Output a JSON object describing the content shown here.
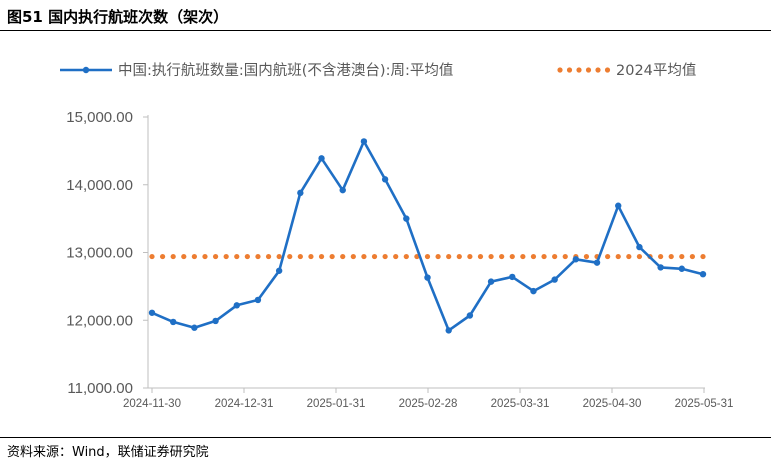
{
  "figure": {
    "title": "图51 国内执行航班次数（架次）",
    "source": "资料来源：Wind，联储证券研究院"
  },
  "colors": {
    "series": "#1f6fc5",
    "avg": "#ed7d31",
    "axis": "#bfbfbf",
    "text": "#595959"
  },
  "chart_data": {
    "type": "line",
    "title": "",
    "xlabel": "",
    "ylabel": "",
    "ylim": [
      11000,
      15000
    ],
    "yticks": [
      11000,
      12000,
      13000,
      14000,
      15000
    ],
    "ytick_labels": [
      "11,000.00",
      "12,000.00",
      "13,000.00",
      "14,000.00",
      "15,000.00"
    ],
    "xtick_labels": [
      "2024-11-30",
      "2024-12-31",
      "2025-01-31",
      "2025-02-28",
      "2025-03-31",
      "2025-04-30",
      "2025-05-31"
    ],
    "legend_position": "top",
    "grid": false,
    "series": [
      {
        "name": "中国:执行航班数量:国内航班(不含港澳台):周:平均值",
        "style": "line-marker",
        "values": [
          12110,
          11975,
          11890,
          11990,
          12220,
          12300,
          12730,
          13880,
          14390,
          13920,
          14640,
          14080,
          13500,
          12630,
          11850,
          12070,
          12570,
          12640,
          12430,
          12600,
          12900,
          12850,
          13690,
          13080,
          12780,
          12760,
          12680
        ]
      },
      {
        "name": "2024平均值",
        "style": "dotted",
        "values": [
          12940,
          12940,
          12940,
          12940,
          12940,
          12940,
          12940,
          12940,
          12940,
          12940,
          12940,
          12940,
          12940,
          12940,
          12940,
          12940,
          12940,
          12940,
          12940,
          12940,
          12940,
          12940,
          12940,
          12940,
          12940,
          12940,
          12940
        ]
      }
    ]
  }
}
